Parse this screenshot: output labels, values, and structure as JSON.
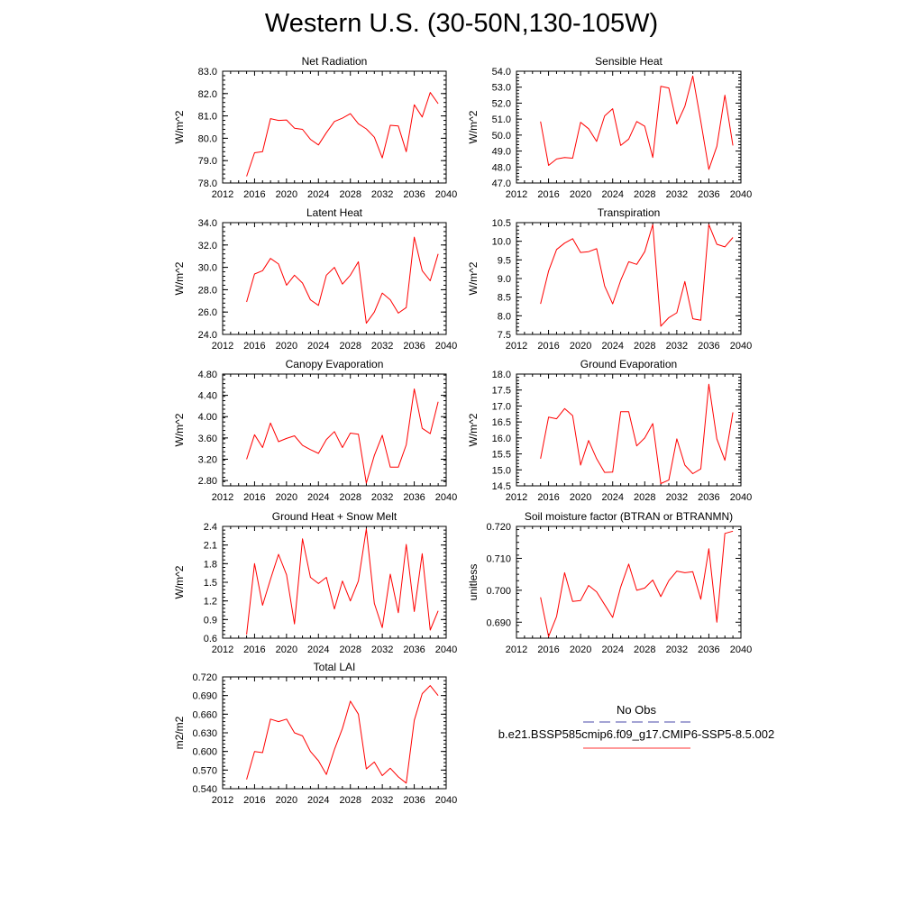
{
  "figure": {
    "title": "Western U.S. (30-50N,130-105W)"
  },
  "legend": {
    "obs_label": "No Obs",
    "obs_color": "#4a4aa8",
    "model_label": "b.e21.BSSP585cmip6.f09_g17.CMIP6-SSP5-8.5.002",
    "model_color": "#ff3333"
  },
  "chart_data": [
    {
      "type": "line",
      "title": "Net Radiation",
      "ylabel": "W/m^2",
      "xlim": [
        2012,
        2040
      ],
      "xticks": [
        "2012",
        "2016",
        "2020",
        "2024",
        "2028",
        "2032",
        "2036",
        "2040"
      ],
      "ylim": [
        78.0,
        83.0
      ],
      "yticks": [
        "78.0",
        "79.0",
        "80.0",
        "81.0",
        "82.0",
        "83.0"
      ],
      "x": [
        2015,
        2016,
        2017,
        2018,
        2019,
        2020,
        2021,
        2022,
        2023,
        2024,
        2025,
        2026,
        2027,
        2028,
        2029,
        2030,
        2031,
        2032,
        2033,
        2034,
        2035,
        2036,
        2037,
        2038,
        2039
      ],
      "series": [
        {
          "color": "#ff0000",
          "values": [
            78.3,
            79.35,
            79.4,
            80.88,
            80.8,
            80.82,
            80.45,
            80.4,
            79.95,
            79.7,
            80.25,
            80.75,
            80.9,
            81.1,
            80.65,
            80.42,
            80.05,
            79.12,
            80.58,
            80.55,
            79.4,
            81.5,
            80.95,
            82.05,
            81.55
          ]
        }
      ]
    },
    {
      "type": "line",
      "title": "Sensible Heat",
      "ylabel": "W/m^2",
      "xlim": [
        2012,
        2040
      ],
      "xticks": [
        "2012",
        "2016",
        "2020",
        "2024",
        "2028",
        "2032",
        "2036",
        "2040"
      ],
      "ylim": [
        47.0,
        54.0
      ],
      "yticks": [
        "47.0",
        "48.0",
        "49.0",
        "50.0",
        "51.0",
        "52.0",
        "53.0",
        "54.0"
      ],
      "x": [
        2015,
        2016,
        2017,
        2018,
        2019,
        2020,
        2021,
        2022,
        2023,
        2024,
        2025,
        2026,
        2027,
        2028,
        2029,
        2030,
        2031,
        2032,
        2033,
        2034,
        2035,
        2036,
        2037,
        2038,
        2039
      ],
      "series": [
        {
          "color": "#ff0000",
          "values": [
            50.85,
            48.1,
            48.5,
            48.6,
            48.55,
            50.8,
            50.4,
            49.6,
            51.2,
            51.65,
            49.35,
            49.75,
            50.85,
            50.55,
            48.6,
            53.05,
            52.95,
            50.7,
            51.8,
            53.7,
            50.85,
            47.85,
            49.3,
            52.5,
            49.35
          ]
        }
      ]
    },
    {
      "type": "line",
      "title": "Latent Heat",
      "ylabel": "W/m^2",
      "xlim": [
        2012,
        2040
      ],
      "xticks": [
        "2012",
        "2016",
        "2020",
        "2024",
        "2028",
        "2032",
        "2036",
        "2040"
      ],
      "ylim": [
        24.0,
        34.0
      ],
      "yticks": [
        "24.0",
        "26.0",
        "28.0",
        "30.0",
        "32.0",
        "34.0"
      ],
      "x": [
        2015,
        2016,
        2017,
        2018,
        2019,
        2020,
        2021,
        2022,
        2023,
        2024,
        2025,
        2026,
        2027,
        2028,
        2029,
        2030,
        2031,
        2032,
        2033,
        2034,
        2035,
        2036,
        2037,
        2038,
        2039
      ],
      "series": [
        {
          "color": "#ff0000",
          "values": [
            26.9,
            29.4,
            29.7,
            30.8,
            30.3,
            28.4,
            29.3,
            28.6,
            27.1,
            26.6,
            29.3,
            30.0,
            28.5,
            29.3,
            30.5,
            25.0,
            26.0,
            27.7,
            27.1,
            25.9,
            26.4,
            32.7,
            29.7,
            28.8,
            31.2
          ]
        }
      ]
    },
    {
      "type": "line",
      "title": "Transpiration",
      "ylabel": "W/m^2",
      "xlim": [
        2012,
        2040
      ],
      "xticks": [
        "2012",
        "2016",
        "2020",
        "2024",
        "2028",
        "2032",
        "2036",
        "2040"
      ],
      "ylim": [
        7.5,
        10.5
      ],
      "yticks": [
        "7.5",
        "8.0",
        "8.5",
        "9.0",
        "9.5",
        "10.0",
        "10.5"
      ],
      "x": [
        2015,
        2016,
        2017,
        2018,
        2019,
        2020,
        2021,
        2022,
        2023,
        2024,
        2025,
        2026,
        2027,
        2028,
        2029,
        2030,
        2031,
        2032,
        2033,
        2034,
        2035,
        2036,
        2037,
        2038,
        2039
      ],
      "series": [
        {
          "color": "#ff0000",
          "values": [
            8.32,
            9.2,
            9.78,
            9.95,
            10.07,
            9.7,
            9.72,
            9.8,
            8.8,
            8.32,
            8.95,
            9.45,
            9.38,
            9.72,
            10.45,
            7.72,
            7.95,
            8.08,
            8.92,
            7.92,
            7.88,
            10.45,
            9.92,
            9.85,
            10.1
          ]
        }
      ]
    },
    {
      "type": "line",
      "title": "Canopy Evaporation",
      "ylabel": "W/m^2",
      "xlim": [
        2012,
        2040
      ],
      "xticks": [
        "2012",
        "2016",
        "2020",
        "2024",
        "2028",
        "2032",
        "2036",
        "2040"
      ],
      "ylim": [
        2.7,
        4.8
      ],
      "yticks": [
        "2.80",
        "3.20",
        "3.60",
        "4.00",
        "4.40",
        "4.80"
      ],
      "x": [
        2015,
        2016,
        2017,
        2018,
        2019,
        2020,
        2021,
        2022,
        2023,
        2024,
        2025,
        2026,
        2027,
        2028,
        2029,
        2030,
        2031,
        2032,
        2033,
        2034,
        2035,
        2036,
        2037,
        2038,
        2039
      ],
      "series": [
        {
          "color": "#ff0000",
          "values": [
            3.2,
            3.66,
            3.42,
            3.88,
            3.53,
            3.59,
            3.64,
            3.46,
            3.38,
            3.31,
            3.57,
            3.72,
            3.42,
            3.69,
            3.67,
            2.75,
            3.27,
            3.65,
            3.05,
            3.05,
            3.47,
            4.52,
            3.78,
            3.68,
            4.28
          ]
        }
      ]
    },
    {
      "type": "line",
      "title": "Ground Evaporation",
      "ylabel": "W/m^2",
      "xlim": [
        2012,
        2040
      ],
      "xticks": [
        "2012",
        "2016",
        "2020",
        "2024",
        "2028",
        "2032",
        "2036",
        "2040"
      ],
      "ylim": [
        14.5,
        18.0
      ],
      "yticks": [
        "14.5",
        "15.0",
        "15.5",
        "16.0",
        "16.5",
        "17.0",
        "17.5",
        "18.0"
      ],
      "x": [
        2015,
        2016,
        2017,
        2018,
        2019,
        2020,
        2021,
        2022,
        2023,
        2024,
        2025,
        2026,
        2027,
        2028,
        2029,
        2030,
        2031,
        2032,
        2033,
        2034,
        2035,
        2036,
        2037,
        2038,
        2039
      ],
      "series": [
        {
          "color": "#ff0000",
          "values": [
            15.35,
            16.65,
            16.6,
            16.92,
            16.7,
            15.15,
            15.92,
            15.35,
            14.92,
            14.93,
            16.82,
            16.82,
            15.75,
            16.0,
            16.45,
            14.57,
            14.68,
            15.97,
            15.15,
            14.88,
            15.03,
            17.68,
            15.97,
            15.3,
            16.8
          ]
        }
      ]
    },
    {
      "type": "line",
      "title": "Ground Heat + Snow Melt",
      "ylabel": "W/m^2",
      "xlim": [
        2012,
        2040
      ],
      "xticks": [
        "2012",
        "2016",
        "2020",
        "2024",
        "2028",
        "2032",
        "2036",
        "2040"
      ],
      "ylim": [
        0.6,
        2.4
      ],
      "yticks": [
        "0.6",
        "0.9",
        "1.2",
        "1.5",
        "1.8",
        "2.1",
        "2.4"
      ],
      "x": [
        2015,
        2016,
        2017,
        2018,
        2019,
        2020,
        2021,
        2022,
        2023,
        2024,
        2025,
        2026,
        2027,
        2028,
        2029,
        2030,
        2031,
        2032,
        2033,
        2034,
        2035,
        2036,
        2037,
        2038,
        2039
      ],
      "series": [
        {
          "color": "#ff0000",
          "values": [
            0.66,
            1.8,
            1.13,
            1.55,
            1.95,
            1.62,
            0.83,
            2.2,
            1.58,
            1.48,
            1.58,
            1.07,
            1.52,
            1.2,
            1.52,
            2.36,
            1.16,
            0.77,
            1.63,
            1.01,
            2.11,
            1.03,
            1.96,
            0.73,
            1.04
          ]
        }
      ]
    },
    {
      "type": "line",
      "title": "Soil moisture factor (BTRAN or BTRANMN)",
      "ylabel": "unitless",
      "xlim": [
        2012,
        2040
      ],
      "xticks": [
        "2012",
        "2016",
        "2020",
        "2024",
        "2028",
        "2032",
        "2036",
        "2040"
      ],
      "ylim": [
        0.685,
        0.72
      ],
      "yticks": [
        "0.690",
        "0.700",
        "0.710",
        "0.720"
      ],
      "x": [
        2015,
        2016,
        2017,
        2018,
        2019,
        2020,
        2021,
        2022,
        2023,
        2024,
        2025,
        2026,
        2027,
        2028,
        2029,
        2030,
        2031,
        2032,
        2033,
        2034,
        2035,
        2036,
        2037,
        2038,
        2039
      ],
      "series": [
        {
          "color": "#ff0000",
          "values": [
            0.6978,
            0.6855,
            0.6918,
            0.7055,
            0.6965,
            0.6968,
            0.7015,
            0.6995,
            0.6955,
            0.6915,
            0.701,
            0.7082,
            0.7,
            0.7007,
            0.7032,
            0.698,
            0.703,
            0.706,
            0.7055,
            0.7058,
            0.6972,
            0.713,
            0.69,
            0.7178,
            0.7185
          ]
        }
      ]
    },
    {
      "type": "line",
      "title": "Total LAI",
      "ylabel": "m2/m2",
      "xlim": [
        2012,
        2040
      ],
      "xticks": [
        "2012",
        "2016",
        "2020",
        "2024",
        "2028",
        "2032",
        "2036",
        "2040"
      ],
      "ylim": [
        0.54,
        0.72
      ],
      "yticks": [
        "0.540",
        "0.570",
        "0.600",
        "0.630",
        "0.660",
        "0.690",
        "0.720"
      ],
      "x": [
        2015,
        2016,
        2017,
        2018,
        2019,
        2020,
        2021,
        2022,
        2023,
        2024,
        2025,
        2026,
        2027,
        2028,
        2029,
        2030,
        2031,
        2032,
        2033,
        2034,
        2035,
        2036,
        2037,
        2038,
        2039
      ],
      "series": [
        {
          "color": "#ff0000",
          "values": [
            0.555,
            0.6,
            0.598,
            0.652,
            0.648,
            0.652,
            0.63,
            0.625,
            0.6,
            0.585,
            0.563,
            0.603,
            0.637,
            0.681,
            0.66,
            0.572,
            0.583,
            0.561,
            0.573,
            0.559,
            0.549,
            0.65,
            0.693,
            0.706,
            0.69
          ]
        }
      ]
    }
  ]
}
